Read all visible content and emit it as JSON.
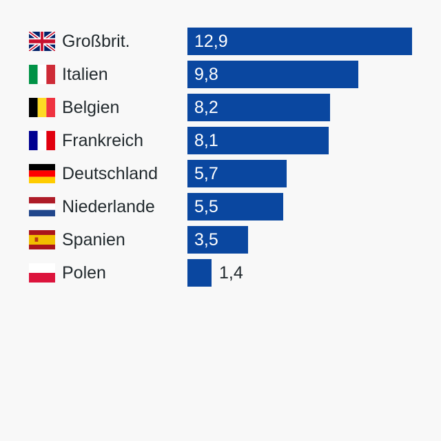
{
  "chart_data": {
    "type": "bar",
    "orientation": "horizontal",
    "categories": [
      "Großbrit.",
      "Italien",
      "Belgien",
      "Frankreich",
      "Deutschland",
      "Niederlande",
      "Spanien",
      "Polen"
    ],
    "values": [
      12.9,
      9.8,
      8.2,
      8.1,
      5.7,
      5.5,
      3.5,
      1.4
    ],
    "value_labels": [
      "12,9",
      "9,8",
      "8,2",
      "8,1",
      "5,7",
      "5,5",
      "3,5",
      "1,4"
    ],
    "flags": [
      "uk-flag",
      "italy-flag",
      "belgium-flag",
      "france-flag",
      "germany-flag",
      "netherlands-flag",
      "spain-flag",
      "poland-flag"
    ],
    "bar_color": "#0a47a0",
    "xlim": [
      0,
      12.9
    ],
    "title": "",
    "xlabel": "",
    "ylabel": "",
    "grid": false
  }
}
